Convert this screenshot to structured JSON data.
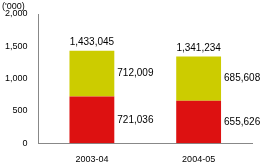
{
  "chart_data": {
    "type": "bar",
    "stacked": true,
    "data_labels": true,
    "grid": false,
    "y_label": "('000)",
    "categories": [
      "2003-04",
      "2004-05"
    ],
    "series": [
      {
        "color": "#dd1111",
        "values": [
          721.036,
          655.626
        ],
        "value_labels": [
          "721,036",
          "655,626"
        ]
      },
      {
        "color": "#cccc00",
        "values": [
          712.009,
          685.608
        ],
        "value_labels": [
          "712,009",
          "685,608"
        ]
      }
    ],
    "totals": [
      1433.045,
      1341.234
    ],
    "total_labels": [
      "1,433,045",
      "1,341,234"
    ],
    "ylim": [
      0,
      2000
    ],
    "yticks": [
      0,
      500,
      {
        "value": 1000,
        "label": "1,000"
      },
      {
        "value": 1500,
        "label": "1,500"
      },
      {
        "value": 2000,
        "label": "2,000"
      }
    ]
  }
}
